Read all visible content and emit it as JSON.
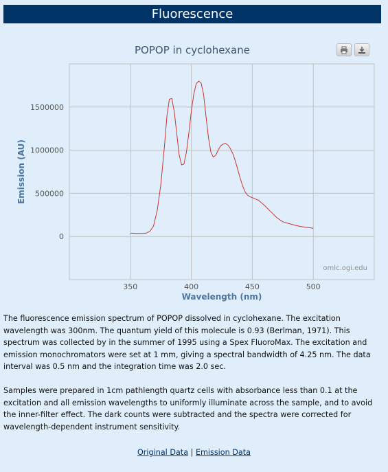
{
  "header": {
    "title": "Fluorescence"
  },
  "chart_data": {
    "type": "line",
    "title": "POPOP in cyclohexane",
    "xlabel": "Wavelength (nm)",
    "ylabel": "Emission (AU)",
    "xlim": [
      300,
      550
    ],
    "ylim": [
      -500000,
      2000000
    ],
    "x_ticks": [
      350,
      400,
      450,
      500
    ],
    "y_ticks": [
      0,
      500000,
      1000000,
      1500000
    ],
    "grid": true,
    "credit": "omlc.ogi.edu",
    "series": [
      {
        "color": "#cc3333",
        "x": [
          350,
          355,
          360,
          363,
          366,
          369,
          372,
          375,
          378,
          380,
          382,
          384,
          386,
          388,
          390,
          392,
          394,
          396,
          398,
          400,
          402,
          404,
          406,
          408,
          410,
          412,
          414,
          416,
          418,
          420,
          422,
          424,
          426,
          428,
          430,
          432,
          434,
          436,
          438,
          440,
          442,
          444,
          446,
          448,
          450,
          455,
          460,
          465,
          470,
          475,
          480,
          485,
          490,
          495,
          500
        ],
        "y": [
          40000,
          35000,
          35000,
          40000,
          60000,
          120000,
          300000,
          600000,
          1050000,
          1400000,
          1590000,
          1600000,
          1450000,
          1200000,
          950000,
          830000,
          840000,
          980000,
          1200000,
          1450000,
          1650000,
          1770000,
          1800000,
          1780000,
          1650000,
          1400000,
          1150000,
          980000,
          920000,
          940000,
          1000000,
          1050000,
          1070000,
          1080000,
          1060000,
          1020000,
          960000,
          880000,
          780000,
          680000,
          590000,
          520000,
          480000,
          460000,
          450000,
          420000,
          360000,
          290000,
          220000,
          170000,
          150000,
          130000,
          115000,
          105000,
          95000
        ]
      }
    ]
  },
  "toolbar": {
    "print_icon": "printer-icon",
    "download_icon": "download-icon"
  },
  "description": {
    "p1": "The fluorescence emission spectrum of POPOP dissolved in cyclohexane. The excitation wavelength was 300nm. The quantum yield of this molecule is 0.93 (Berlman, 1971). This spectrum was collected by in the summer of 1995 using a Spex FluoroMax. The excitation and emission monochromators were set at 1 mm, giving a spectral bandwidth of 4.25 nm. The data interval was 0.5 nm and the integration time was 2.0 sec.",
    "p2": "Samples were prepared in 1cm pathlength quartz cells with absorbance less than 0.1 at the excitation and all emission wavelengths to uniformly illuminate across the sample, and to avoid the inner-filter effect. The dark counts were subtracted and the spectra were corrected for wavelength-dependent instrument sensitivity."
  },
  "links": {
    "original": "Original Data",
    "separator": "|",
    "emission": "Emission Data"
  }
}
